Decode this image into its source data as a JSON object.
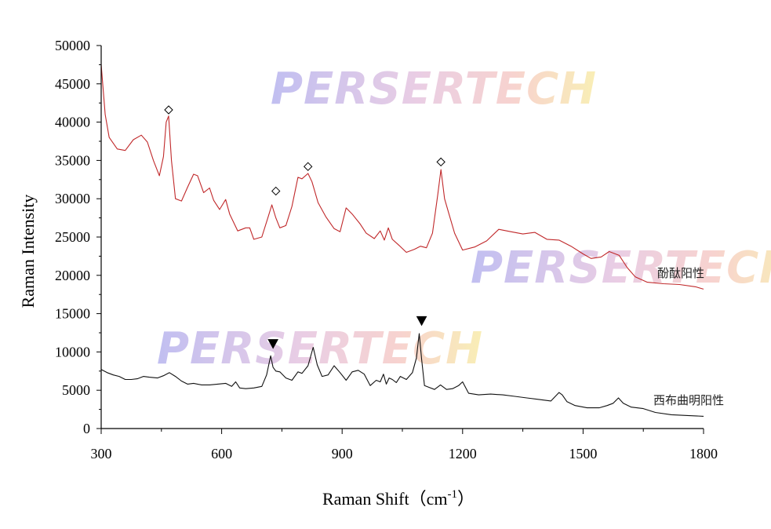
{
  "chart_data": {
    "type": "line",
    "title": "",
    "xlabel": "Raman Shift（cm",
    "xlabel_sup": "-1",
    "xlabel_end": "）",
    "ylabel": "Raman Intensity",
    "xlim": [
      300,
      1800
    ],
    "ylim": [
      0,
      50000
    ],
    "xticks": [
      300,
      600,
      900,
      1200,
      1500,
      1800
    ],
    "yticks": [
      0,
      5000,
      10000,
      15000,
      20000,
      25000,
      30000,
      35000,
      40000,
      45000,
      50000
    ],
    "grid": false,
    "watermark": "PERSERTECH",
    "series": [
      {
        "name": "酚酞阳性",
        "color": "#c0282a",
        "marker": "diamond",
        "x": [
          300,
          310,
          320,
          340,
          360,
          380,
          400,
          415,
          430,
          445,
          455,
          462,
          468,
          475,
          485,
          500,
          515,
          530,
          540,
          555,
          570,
          580,
          595,
          610,
          620,
          640,
          660,
          670,
          680,
          700,
          715,
          725,
          735,
          745,
          760,
          775,
          790,
          800,
          815,
          825,
          840,
          860,
          880,
          895,
          910,
          925,
          945,
          960,
          980,
          995,
          1005,
          1015,
          1025,
          1040,
          1060,
          1080,
          1095,
          1110,
          1125,
          1138,
          1146,
          1155,
          1165,
          1180,
          1200,
          1230,
          1260,
          1290,
          1320,
          1350,
          1380,
          1410,
          1440,
          1470,
          1500,
          1520,
          1545,
          1565,
          1590,
          1610,
          1630,
          1660,
          1700,
          1740,
          1780,
          1800
        ],
        "y": [
          47500,
          41000,
          38000,
          36500,
          36300,
          37700,
          38300,
          37400,
          35000,
          33000,
          35500,
          40000,
          40800,
          35000,
          30000,
          29700,
          31500,
          33200,
          33000,
          30800,
          31400,
          29800,
          28600,
          29900,
          28000,
          25800,
          26200,
          26200,
          24700,
          25000,
          27500,
          29200,
          27500,
          26200,
          26500,
          29000,
          32800,
          32600,
          33300,
          32200,
          29500,
          27600,
          26100,
          25700,
          28800,
          28000,
          26700,
          25500,
          24800,
          25800,
          24600,
          26200,
          24700,
          24000,
          23000,
          23400,
          23800,
          23600,
          25500,
          30500,
          33800,
          30000,
          28200,
          25500,
          23300,
          23700,
          24500,
          26000,
          25700,
          25400,
          25600,
          24700,
          24600,
          23800,
          22800,
          22200,
          22400,
          23100,
          22600,
          21000,
          19800,
          19100,
          18900,
          18800,
          18500,
          18200
        ]
      },
      {
        "name": "西布曲明阳性",
        "color": "#111111",
        "marker": "triangle-down",
        "x": [
          300,
          315,
          330,
          345,
          360,
          375,
          390,
          405,
          420,
          440,
          455,
          470,
          485,
          500,
          515,
          530,
          550,
          570,
          590,
          610,
          625,
          635,
          645,
          660,
          680,
          700,
          712,
          722,
          728,
          735,
          745,
          760,
          775,
          790,
          800,
          815,
          828,
          838,
          850,
          865,
          880,
          895,
          910,
          925,
          940,
          955,
          970,
          985,
          995,
          1003,
          1010,
          1017,
          1025,
          1035,
          1045,
          1060,
          1075,
          1085,
          1092,
          1098,
          1105,
          1115,
          1130,
          1145,
          1160,
          1175,
          1190,
          1200,
          1215,
          1240,
          1270,
          1300,
          1330,
          1360,
          1390,
          1420,
          1440,
          1448,
          1460,
          1480,
          1510,
          1540,
          1560,
          1575,
          1588,
          1600,
          1620,
          1650,
          1680,
          1720,
          1760,
          1800
        ],
        "y": [
          7700,
          7300,
          7000,
          6800,
          6400,
          6400,
          6500,
          6800,
          6700,
          6600,
          6900,
          7300,
          6800,
          6200,
          5800,
          5900,
          5700,
          5700,
          5800,
          5900,
          5500,
          6100,
          5300,
          5200,
          5300,
          5500,
          7000,
          9500,
          8000,
          7500,
          7400,
          6600,
          6300,
          7400,
          7200,
          8200,
          10600,
          8300,
          6800,
          7000,
          8200,
          7300,
          6300,
          7400,
          7600,
          7100,
          5600,
          6300,
          6100,
          7100,
          5800,
          6600,
          6400,
          6000,
          6800,
          6400,
          7300,
          9200,
          12400,
          9000,
          5600,
          5400,
          5100,
          5700,
          5100,
          5200,
          5600,
          6100,
          4600,
          4400,
          4500,
          4400,
          4200,
          4000,
          3800,
          3600,
          4700,
          4400,
          3500,
          3000,
          2700,
          2700,
          3000,
          3300,
          4000,
          3300,
          2800,
          2600,
          2100,
          1800,
          1700,
          1600
        ]
      }
    ],
    "annotations": [
      {
        "series": 0,
        "x": 468,
        "y": 41600,
        "marker": "diamond"
      },
      {
        "series": 0,
        "x": 735,
        "y": 31000,
        "marker": "diamond"
      },
      {
        "series": 0,
        "x": 815,
        "y": 34200,
        "marker": "diamond"
      },
      {
        "series": 0,
        "x": 1146,
        "y": 34800,
        "marker": "diamond"
      },
      {
        "series": 1,
        "x": 728,
        "y": 11000,
        "marker": "triangle-down"
      },
      {
        "series": 1,
        "x": 1098,
        "y": 14000,
        "marker": "triangle-down"
      }
    ]
  }
}
